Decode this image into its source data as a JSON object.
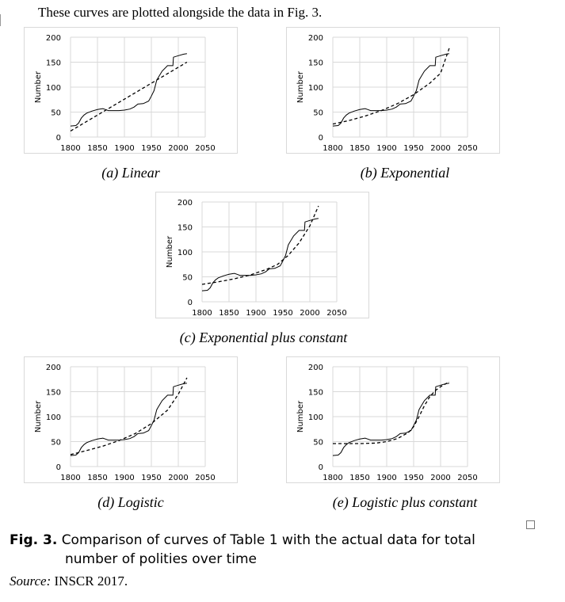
{
  "intro_text": "These curves are plotted alongside the data in Fig. 3.",
  "panels": [
    {
      "caption": "(a) Linear",
      "ylabel": "Number",
      "y_ticks": [
        "0",
        "50",
        "100",
        "150",
        "200"
      ],
      "x_ticks": [
        "1800",
        "1850",
        "1900",
        "1950",
        "2000",
        "2050"
      ]
    },
    {
      "caption": "(b) Exponential",
      "ylabel": "Number",
      "y_ticks": [
        "0",
        "50",
        "100",
        "150",
        "200"
      ],
      "x_ticks": [
        "1800",
        "1850",
        "1900",
        "1950",
        "2000",
        "2050"
      ]
    },
    {
      "caption": "(c) Exponential plus constant",
      "ylabel": "Number",
      "y_ticks": [
        "0",
        "50",
        "100",
        "150",
        "200"
      ],
      "x_ticks": [
        "1800",
        "1850",
        "1900",
        "1950",
        "2000",
        "2050"
      ]
    },
    {
      "caption": "(d) Logistic",
      "ylabel": "Number",
      "y_ticks": [
        "0",
        "50",
        "100",
        "150",
        "200"
      ],
      "x_ticks": [
        "1800",
        "1850",
        "1900",
        "1950",
        "2000",
        "2050"
      ]
    },
    {
      "caption": "(e) Logistic plus constant",
      "ylabel": "Number",
      "y_ticks": [
        "0",
        "50",
        "100",
        "150",
        "200"
      ],
      "x_ticks": [
        "1800",
        "1850",
        "1900",
        "1950",
        "2000",
        "2050"
      ]
    }
  ],
  "figure": {
    "label": "Fig. 3.",
    "caption_line1": "Comparison of curves of Table 1 with the actual data for total",
    "caption_line2": "number of polities over time"
  },
  "source": {
    "label": "Source:",
    "text": "INSCR 2017."
  },
  "chart_data": [
    {
      "type": "line",
      "title": "(a) Linear",
      "ylabel": "Number",
      "xlim": [
        1800,
        2050
      ],
      "ylim": [
        0,
        200
      ],
      "grid": true,
      "series": [
        {
          "style": "solid",
          "x": [
            1800,
            1810,
            1815,
            1820,
            1825,
            1830,
            1840,
            1850,
            1860,
            1865,
            1870,
            1880,
            1890,
            1900,
            1910,
            1918,
            1925,
            1935,
            1945,
            1950,
            1955,
            1960,
            1962,
            1970,
            1980,
            1990,
            1991,
            2000,
            2010,
            2016
          ],
          "y": [
            22,
            23,
            28,
            38,
            44,
            48,
            52,
            55,
            57,
            55,
            53,
            53,
            53,
            54,
            56,
            60,
            66,
            67,
            72,
            82,
            93,
            114,
            118,
            132,
            143,
            143,
            160,
            163,
            166,
            167
          ]
        },
        {
          "style": "dashed",
          "x": [
            1800,
            2016
          ],
          "y": [
            12,
            150
          ]
        }
      ]
    },
    {
      "type": "line",
      "title": "(b) Exponential",
      "ylabel": "Number",
      "xlim": [
        1800,
        2050
      ],
      "ylim": [
        0,
        200
      ],
      "grid": true,
      "series": [
        {
          "style": "solid",
          "x": [
            1800,
            1810,
            1815,
            1820,
            1825,
            1830,
            1840,
            1850,
            1860,
            1865,
            1870,
            1880,
            1890,
            1900,
            1910,
            1918,
            1925,
            1935,
            1945,
            1950,
            1955,
            1960,
            1962,
            1970,
            1980,
            1990,
            1991,
            2000,
            2010,
            2016
          ],
          "y": [
            22,
            23,
            28,
            38,
            44,
            48,
            52,
            55,
            57,
            55,
            53,
            53,
            53,
            54,
            56,
            60,
            66,
            67,
            72,
            82,
            93,
            114,
            118,
            132,
            143,
            143,
            160,
            163,
            166,
            167
          ]
        },
        {
          "style": "dashed",
          "x": [
            1800,
            1830,
            1860,
            1890,
            1920,
            1950,
            1980,
            2000,
            2016
          ],
          "y": [
            26,
            33,
            42,
            53,
            67,
            85,
            108,
            128,
            178
          ]
        }
      ]
    },
    {
      "type": "line",
      "title": "(c) Exponential plus constant",
      "ylabel": "Number",
      "xlim": [
        1800,
        2050
      ],
      "ylim": [
        0,
        200
      ],
      "grid": true,
      "series": [
        {
          "style": "solid",
          "x": [
            1800,
            1810,
            1815,
            1820,
            1825,
            1830,
            1840,
            1850,
            1860,
            1865,
            1870,
            1880,
            1890,
            1900,
            1910,
            1918,
            1925,
            1935,
            1945,
            1950,
            1955,
            1960,
            1962,
            1970,
            1980,
            1990,
            1991,
            2000,
            2010,
            2016
          ],
          "y": [
            22,
            23,
            28,
            38,
            44,
            48,
            52,
            55,
            57,
            55,
            53,
            53,
            53,
            54,
            56,
            60,
            66,
            67,
            72,
            82,
            93,
            114,
            118,
            132,
            143,
            143,
            160,
            163,
            166,
            167
          ]
        },
        {
          "style": "dashed",
          "x": [
            1800,
            1830,
            1860,
            1890,
            1920,
            1940,
            1960,
            1980,
            2000,
            2016
          ],
          "y": [
            35,
            40,
            46,
            54,
            65,
            75,
            93,
            118,
            152,
            192
          ]
        }
      ]
    },
    {
      "type": "line",
      "title": "(d) Logistic",
      "ylabel": "Number",
      "xlim": [
        1800,
        2050
      ],
      "ylim": [
        0,
        200
      ],
      "grid": true,
      "series": [
        {
          "style": "solid",
          "x": [
            1800,
            1810,
            1815,
            1820,
            1825,
            1830,
            1840,
            1850,
            1860,
            1865,
            1870,
            1880,
            1890,
            1900,
            1910,
            1918,
            1925,
            1935,
            1945,
            1950,
            1955,
            1960,
            1962,
            1970,
            1980,
            1990,
            1991,
            2000,
            2010,
            2016
          ],
          "y": [
            22,
            23,
            28,
            38,
            44,
            48,
            52,
            55,
            57,
            55,
            53,
            53,
            53,
            54,
            56,
            60,
            66,
            67,
            72,
            82,
            93,
            114,
            118,
            132,
            143,
            143,
            160,
            163,
            166,
            167
          ]
        },
        {
          "style": "dashed",
          "x": [
            1800,
            1830,
            1860,
            1890,
            1920,
            1950,
            1980,
            2000,
            2016
          ],
          "y": [
            24,
            32,
            41,
            52,
            66,
            86,
            113,
            145,
            178
          ]
        }
      ]
    },
    {
      "type": "line",
      "title": "(e) Logistic plus constant",
      "ylabel": "Number",
      "xlim": [
        1800,
        2050
      ],
      "ylim": [
        0,
        200
      ],
      "grid": true,
      "series": [
        {
          "style": "solid",
          "x": [
            1800,
            1810,
            1815,
            1820,
            1825,
            1830,
            1840,
            1850,
            1860,
            1865,
            1870,
            1880,
            1890,
            1900,
            1910,
            1918,
            1925,
            1935,
            1945,
            1950,
            1955,
            1960,
            1962,
            1970,
            1980,
            1990,
            1991,
            2000,
            2010,
            2016
          ],
          "y": [
            22,
            23,
            28,
            38,
            44,
            48,
            52,
            55,
            57,
            55,
            53,
            53,
            53,
            54,
            56,
            60,
            66,
            67,
            72,
            82,
            93,
            114,
            118,
            132,
            143,
            143,
            160,
            163,
            166,
            167
          ]
        },
        {
          "style": "dashed",
          "x": [
            1800,
            1850,
            1880,
            1900,
            1920,
            1940,
            1950,
            1960,
            1970,
            1980,
            1990,
            2000,
            2016
          ],
          "y": [
            46,
            46,
            47,
            50,
            56,
            68,
            80,
            100,
            122,
            140,
            152,
            160,
            170
          ]
        }
      ]
    }
  ]
}
